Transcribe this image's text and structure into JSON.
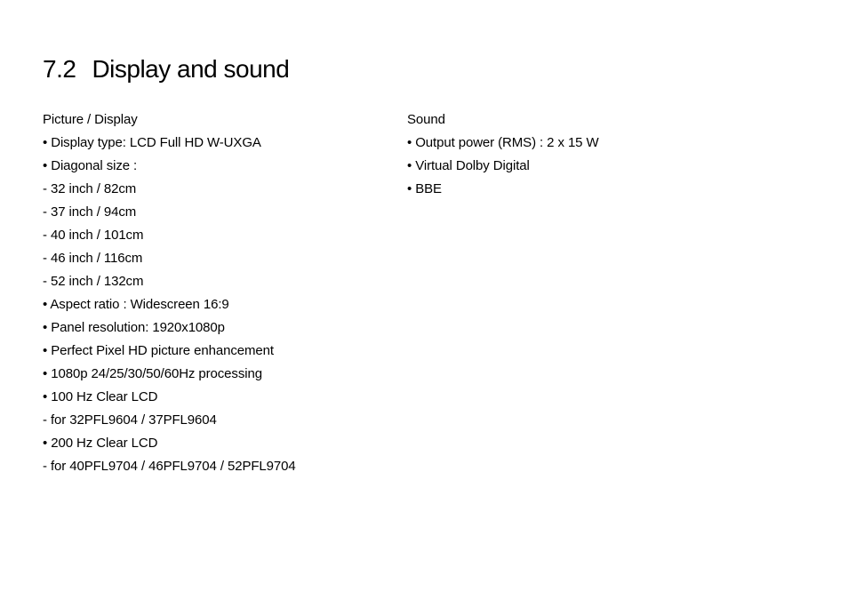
{
  "heading": {
    "number": "7.2",
    "title": "Display and sound"
  },
  "left": {
    "header": "Picture / Display",
    "items": [
      "• Display type: LCD Full HD W-UXGA",
      "• Diagonal size :",
      "- 32 inch / 82cm",
      "- 37 inch / 94cm",
      "- 40 inch / 101cm",
      "- 46 inch / 116cm",
      "- 52 inch / 132cm",
      "• Aspect ratio : Widescreen 16:9",
      "• Panel resolution: 1920x1080p",
      "• Perfect Pixel HD picture enhancement",
      "• 1080p 24/25/30/50/60Hz processing",
      "• 100 Hz Clear LCD",
      "- for 32PFL9604 / 37PFL9604",
      "• 200 Hz Clear LCD",
      "- for 40PFL9704 / 46PFL9704 / 52PFL9704"
    ]
  },
  "right": {
    "header": "Sound",
    "items": [
      "• Output power (RMS) : 2 x 15 W",
      "• Virtual Dolby Digital",
      "• BBE"
    ]
  }
}
